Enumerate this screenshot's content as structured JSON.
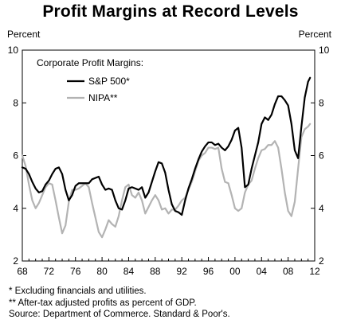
{
  "chart_data": {
    "type": "line",
    "title": "Profit Margins at Record Levels",
    "ylabel_left": "Percent",
    "ylabel_right": "Percent",
    "legend_title": "Corporate Profit Margins:",
    "legend_position": "top-left",
    "xlim": [
      1968,
      2012
    ],
    "ylim": [
      2,
      10
    ],
    "x_ticks": [
      {
        "value": 1968,
        "label": "68"
      },
      {
        "value": 1972,
        "label": "72"
      },
      {
        "value": 1976,
        "label": "76"
      },
      {
        "value": 1980,
        "label": "80"
      },
      {
        "value": 1984,
        "label": "84"
      },
      {
        "value": 1988,
        "label": "88"
      },
      {
        "value": 1992,
        "label": "92"
      },
      {
        "value": 1996,
        "label": "96"
      },
      {
        "value": 2000,
        "label": "00"
      },
      {
        "value": 2004,
        "label": "04"
      },
      {
        "value": 2008,
        "label": "08"
      },
      {
        "value": 2012,
        "label": "12"
      }
    ],
    "y_ticks": [
      2,
      4,
      6,
      8,
      10
    ],
    "grid": false,
    "series": [
      {
        "name": "S&P 500*",
        "color": "#000000",
        "points": [
          [
            1968.0,
            5.55
          ],
          [
            1968.5,
            5.5
          ],
          [
            1969.0,
            5.3
          ],
          [
            1969.5,
            5.0
          ],
          [
            1970.0,
            4.75
          ],
          [
            1970.5,
            4.6
          ],
          [
            1971.0,
            4.65
          ],
          [
            1971.5,
            4.9
          ],
          [
            1972.0,
            5.05
          ],
          [
            1972.5,
            5.3
          ],
          [
            1973.0,
            5.5
          ],
          [
            1973.5,
            5.55
          ],
          [
            1974.0,
            5.3
          ],
          [
            1974.5,
            4.7
          ],
          [
            1975.0,
            4.3
          ],
          [
            1975.5,
            4.5
          ],
          [
            1976.0,
            4.85
          ],
          [
            1976.5,
            4.95
          ],
          [
            1977.0,
            4.95
          ],
          [
            1977.5,
            4.95
          ],
          [
            1978.0,
            4.95
          ],
          [
            1978.5,
            5.1
          ],
          [
            1979.0,
            5.15
          ],
          [
            1979.5,
            5.2
          ],
          [
            1980.0,
            4.9
          ],
          [
            1980.5,
            4.7
          ],
          [
            1981.0,
            4.75
          ],
          [
            1981.5,
            4.7
          ],
          [
            1982.0,
            4.3
          ],
          [
            1982.5,
            4.0
          ],
          [
            1983.0,
            3.95
          ],
          [
            1983.5,
            4.3
          ],
          [
            1984.0,
            4.75
          ],
          [
            1984.5,
            4.8
          ],
          [
            1985.0,
            4.75
          ],
          [
            1985.5,
            4.7
          ],
          [
            1986.0,
            4.8
          ],
          [
            1986.5,
            4.4
          ],
          [
            1987.0,
            4.6
          ],
          [
            1987.5,
            5.0
          ],
          [
            1988.0,
            5.4
          ],
          [
            1988.5,
            5.75
          ],
          [
            1989.0,
            5.7
          ],
          [
            1989.5,
            5.35
          ],
          [
            1990.0,
            4.7
          ],
          [
            1990.5,
            4.15
          ],
          [
            1991.0,
            3.9
          ],
          [
            1991.5,
            3.85
          ],
          [
            1992.0,
            3.75
          ],
          [
            1992.5,
            4.3
          ],
          [
            1993.0,
            4.75
          ],
          [
            1993.5,
            5.1
          ],
          [
            1994.0,
            5.5
          ],
          [
            1994.5,
            5.85
          ],
          [
            1995.0,
            6.15
          ],
          [
            1995.5,
            6.35
          ],
          [
            1996.0,
            6.5
          ],
          [
            1996.5,
            6.5
          ],
          [
            1997.0,
            6.4
          ],
          [
            1997.5,
            6.45
          ],
          [
            1998.0,
            6.3
          ],
          [
            1998.5,
            6.2
          ],
          [
            1999.0,
            6.35
          ],
          [
            1999.5,
            6.6
          ],
          [
            2000.0,
            6.95
          ],
          [
            2000.5,
            7.05
          ],
          [
            2001.0,
            6.3
          ],
          [
            2001.5,
            4.8
          ],
          [
            2002.0,
            4.9
          ],
          [
            2002.5,
            5.5
          ],
          [
            2003.0,
            6.0
          ],
          [
            2003.5,
            6.5
          ],
          [
            2004.0,
            7.2
          ],
          [
            2004.5,
            7.45
          ],
          [
            2005.0,
            7.35
          ],
          [
            2005.5,
            7.55
          ],
          [
            2006.0,
            7.95
          ],
          [
            2006.5,
            8.25
          ],
          [
            2007.0,
            8.25
          ],
          [
            2007.5,
            8.1
          ],
          [
            2008.0,
            7.9
          ],
          [
            2008.5,
            7.2
          ],
          [
            2009.0,
            6.2
          ],
          [
            2009.5,
            5.9
          ],
          [
            2010.0,
            7.1
          ],
          [
            2010.5,
            8.2
          ],
          [
            2011.0,
            8.8
          ],
          [
            2011.3,
            8.95
          ]
        ]
      },
      {
        "name": "NIPA**",
        "color": "#b3b3b3",
        "points": [
          [
            1968.0,
            6.0
          ],
          [
            1968.5,
            5.6
          ],
          [
            1969.0,
            4.9
          ],
          [
            1969.5,
            4.3
          ],
          [
            1970.0,
            4.0
          ],
          [
            1970.5,
            4.2
          ],
          [
            1971.0,
            4.5
          ],
          [
            1971.5,
            4.8
          ],
          [
            1972.0,
            4.95
          ],
          [
            1972.5,
            4.9
          ],
          [
            1973.0,
            4.3
          ],
          [
            1973.5,
            3.65
          ],
          [
            1974.0,
            3.05
          ],
          [
            1974.5,
            3.35
          ],
          [
            1975.0,
            4.25
          ],
          [
            1975.5,
            4.7
          ],
          [
            1976.0,
            4.7
          ],
          [
            1976.5,
            4.75
          ],
          [
            1977.0,
            4.85
          ],
          [
            1977.5,
            4.95
          ],
          [
            1978.0,
            4.8
          ],
          [
            1978.5,
            4.2
          ],
          [
            1979.0,
            3.65
          ],
          [
            1979.5,
            3.1
          ],
          [
            1980.0,
            2.9
          ],
          [
            1980.5,
            3.2
          ],
          [
            1981.0,
            3.55
          ],
          [
            1981.5,
            3.4
          ],
          [
            1982.0,
            3.3
          ],
          [
            1982.5,
            3.7
          ],
          [
            1983.0,
            4.3
          ],
          [
            1983.5,
            4.8
          ],
          [
            1984.0,
            4.9
          ],
          [
            1984.5,
            4.5
          ],
          [
            1985.0,
            4.4
          ],
          [
            1985.5,
            4.6
          ],
          [
            1986.0,
            4.3
          ],
          [
            1986.5,
            3.8
          ],
          [
            1987.0,
            4.05
          ],
          [
            1987.5,
            4.3
          ],
          [
            1988.0,
            4.5
          ],
          [
            1988.5,
            4.3
          ],
          [
            1989.0,
            3.95
          ],
          [
            1989.5,
            4.0
          ],
          [
            1990.0,
            3.8
          ],
          [
            1990.5,
            3.95
          ],
          [
            1991.0,
            3.95
          ],
          [
            1991.5,
            4.1
          ],
          [
            1992.0,
            4.3
          ],
          [
            1992.5,
            4.4
          ],
          [
            1993.0,
            4.7
          ],
          [
            1993.5,
            5.0
          ],
          [
            1994.0,
            5.4
          ],
          [
            1994.5,
            5.8
          ],
          [
            1995.0,
            6.0
          ],
          [
            1995.5,
            6.1
          ],
          [
            1996.0,
            6.3
          ],
          [
            1996.5,
            6.3
          ],
          [
            1997.0,
            6.25
          ],
          [
            1997.5,
            6.3
          ],
          [
            1998.0,
            5.5
          ],
          [
            1998.5,
            5.0
          ],
          [
            1999.0,
            4.95
          ],
          [
            1999.5,
            4.5
          ],
          [
            2000.0,
            4.0
          ],
          [
            2000.5,
            3.9
          ],
          [
            2001.0,
            4.0
          ],
          [
            2001.5,
            4.6
          ],
          [
            2002.0,
            4.9
          ],
          [
            2002.5,
            5.05
          ],
          [
            2003.0,
            5.5
          ],
          [
            2003.5,
            5.9
          ],
          [
            2004.0,
            6.2
          ],
          [
            2004.5,
            6.25
          ],
          [
            2005.0,
            6.4
          ],
          [
            2005.5,
            6.4
          ],
          [
            2006.0,
            6.55
          ],
          [
            2006.5,
            6.3
          ],
          [
            2007.0,
            5.5
          ],
          [
            2007.5,
            4.6
          ],
          [
            2008.0,
            3.9
          ],
          [
            2008.5,
            3.7
          ],
          [
            2009.0,
            4.25
          ],
          [
            2009.5,
            5.5
          ],
          [
            2010.0,
            6.7
          ],
          [
            2010.5,
            7.0
          ],
          [
            2011.0,
            7.1
          ],
          [
            2011.3,
            7.2
          ]
        ]
      }
    ]
  },
  "notes": [
    "* Excluding financials and utilities.",
    "** After-tax adjusted profits as percent of GDP.",
    "Source: Department of Commerce. Standard & Poor's."
  ]
}
